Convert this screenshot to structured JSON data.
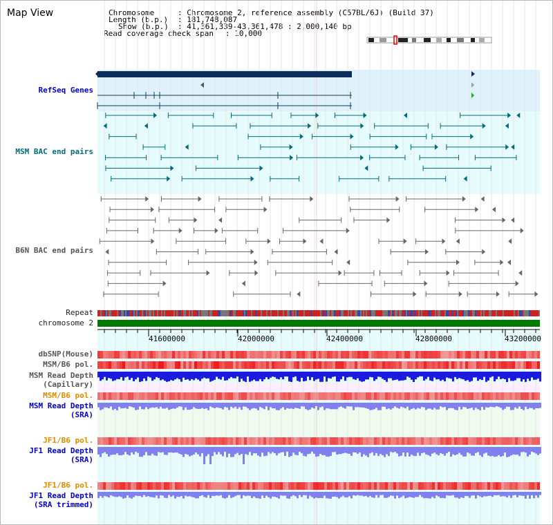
{
  "title": "Map View",
  "info": {
    "chromosome_label": "Chromosome",
    "chromosome_value": "Chromosome 2, reference assembly (C57BL/6J) (Build 37)",
    "length_label": "Length (b.p.)",
    "length_value": "181,748,087",
    "show_label": "Show (b.p.)",
    "show_value": "41,361,339-43,361,478 : 2,000,140 bp",
    "coverage_label": "Read coverage check span",
    "coverage_value": "10,000"
  },
  "tracks": {
    "refseq": "RefSeq Genes",
    "msm_bac": "MSM BAC end pairs",
    "b6n_bac": "B6N BAC end pairs",
    "repeat": "Repeat",
    "chromosome": "chromosome 2",
    "dbsnp": "dbSNP(Mouse)",
    "msm_b6_pol": "MSM/B6 pol.",
    "msm_depth_cap_1": "MSM Read Depth",
    "msm_depth_cap_2": "(Capillary)",
    "msm_b6_pol_2": "MSM/B6 pol.",
    "msm_depth_sra_1": "MSM Read Depth",
    "msm_depth_sra_2": "(SRA)",
    "jf1_pol_1": "JF1/B6 pol.",
    "jf1_depth_sra_1": "JF1 Read Depth",
    "jf1_depth_sra_2": "(SRA)",
    "jf1_pol_2": "JF1/B6 pol.",
    "jf1_depth_trim_1": "JF1 Read Depth",
    "jf1_depth_trim_2": "(SRA trimmed)"
  },
  "axis": {
    "ticks": [
      "41600000",
      "42000000",
      "42400000",
      "42800000",
      "43200000"
    ]
  },
  "colors": {
    "refseq_bg": "#dff1fb",
    "refseq_bar": "#0d2c5e",
    "msm_bg": "#e6fbfb",
    "msm_feature": "#006b7d",
    "b6n_feature": "#666666",
    "chromosome_bar": "#007a00",
    "depth_blue": "#1a1ae0",
    "depth_violet": "#8080ee",
    "pol_red": "#ee2222"
  }
}
